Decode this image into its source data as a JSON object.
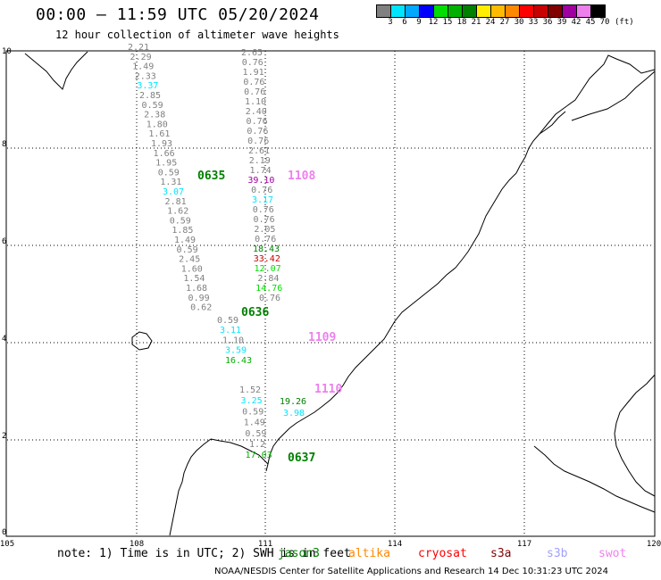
{
  "header": {
    "title": "00:00 – 11:59 UTC 05/20/2024",
    "subtitle": "12 hour collection of altimeter wave heights"
  },
  "legend": {
    "labels": [
      "3",
      "6",
      "9",
      "12",
      "15",
      "18",
      "21",
      "24",
      "27",
      "30",
      "33",
      "36",
      "39",
      "42",
      "45",
      "70"
    ],
    "unit": "(ft)",
    "colors": [
      "#808080",
      "#00e5ff",
      "#00a8ff",
      "#0000ff",
      "#00dd00",
      "#00b000",
      "#008000",
      "#ffee00",
      "#ffbb00",
      "#ff8800",
      "#ff0000",
      "#c80000",
      "#800000",
      "#a000a0",
      "#ee80ee",
      "#000000"
    ]
  },
  "map": {
    "x_ticks": [
      "105",
      "108",
      "111",
      "114",
      "117",
      "120"
    ],
    "y_ticks": [
      "10",
      "8",
      "6",
      "4",
      "2",
      "0"
    ],
    "tracks": [
      {
        "color": "#808080",
        "values": [
          "2.21",
          "2.29",
          "1.49",
          "2.33",
          "3.37",
          "2.85",
          "0.59",
          "2.38",
          "1.80",
          "1.61",
          "1.93",
          "1.66",
          "1.95",
          "0.59",
          "1.31",
          "3.07",
          "2.81",
          "1.62",
          "0.59",
          "1.85",
          "1.49",
          "0.59",
          "2.45",
          "1.60",
          "1.54",
          "1.68",
          "0.99",
          "0.62"
        ]
      },
      {
        "color": "#808080",
        "values": [
          "0.59",
          "3.11",
          "1.10",
          "3.59",
          "16.43"
        ]
      },
      {
        "color": "#808080",
        "values": [
          "2.65",
          "0.76",
          "1.91",
          "0.76",
          "0.76",
          "1.10",
          "2.40",
          "0.76",
          "0.76",
          "0.76",
          "2.61",
          "2.19",
          "1.74",
          "39.10",
          "0.76",
          "3.17",
          "0.76",
          "0.76",
          "2.05",
          "0.76",
          "18.43",
          "33.42",
          "12.07",
          "2.84",
          "14.76",
          "0.76"
        ]
      },
      {
        "color": "#808080",
        "values": [
          "19.26",
          "3.98"
        ]
      },
      {
        "color": "#808080",
        "values": [
          "1.52",
          "3.25",
          "0.59",
          "1.49",
          "0.59",
          "1.2",
          "17.03"
        ]
      }
    ],
    "pass_labels": [
      "0635",
      "1108",
      "0636",
      "1109",
      "1110",
      "0637"
    ]
  },
  "note": "note: 1) Time is in UTC; 2) SWH is in feet",
  "satellites": [
    {
      "name": "jason3",
      "color": "#008000"
    },
    {
      "name": "altika",
      "color": "#ff8800"
    },
    {
      "name": "cryosat",
      "color": "#ff0000"
    },
    {
      "name": "s3a",
      "color": "#800000"
    },
    {
      "name": "s3b",
      "color": "#a0a0ff"
    },
    {
      "name": "swot",
      "color": "#ee80ee"
    }
  ],
  "footer": "NOAA/NESDIS Center for Satellite Applications and Research   14 Dec 10:31:23 UTC 2024"
}
